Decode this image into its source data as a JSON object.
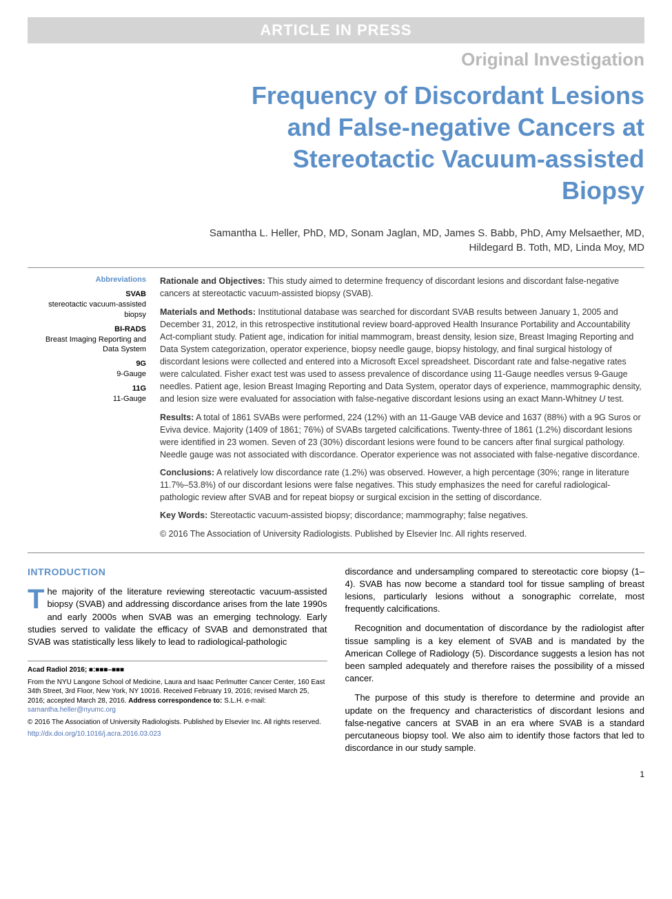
{
  "banner": "ARTICLE IN PRESS",
  "category": "Original Investigation",
  "title_lines": [
    "Frequency of Discordant Lesions",
    "and False-negative Cancers at",
    "Stereotactic Vacuum-assisted",
    "Biopsy"
  ],
  "authors_line1": "Samantha L. Heller, PhD, MD, Sonam Jaglan, MD, James S. Babb, PhD, Amy Melsaether, MD,",
  "authors_line2": "Hildegard B. Toth, MD, Linda Moy, MD",
  "abbrev": {
    "heading": "Abbreviations",
    "items": [
      {
        "term": "SVAB",
        "def": "stereotactic vacuum-assisted biopsy"
      },
      {
        "term": "BI-RADS",
        "def": "Breast Imaging Reporting and Data System"
      },
      {
        "term": "9G",
        "def": "9-Gauge"
      },
      {
        "term": "11G",
        "def": "11-Gauge"
      }
    ]
  },
  "abstract": {
    "rationale_label": "Rationale and Objectives:",
    "rationale": " This study aimed to determine frequency of discordant lesions and discordant false-negative cancers at stereotactic vacuum-assisted biopsy (SVAB).",
    "methods_label": "Materials and Methods:",
    "methods": " Institutional database was searched for discordant SVAB results between January 1, 2005 and December 31, 2012, in this retrospective institutional review board-approved Health Insurance Portability and Accountability Act-compliant study. Patient age, indication for initial mammogram, breast density, lesion size, Breast Imaging Reporting and Data System categorization, operator experience, biopsy needle gauge, biopsy histology, and final surgical histology of discordant lesions were collected and entered into a Microsoft Excel spreadsheet. Discordant rate and false-negative rates were calculated. Fisher exact test was used to assess prevalence of discordance using 11-Gauge needles versus 9-Gauge needles. Patient age, lesion Breast Imaging Reporting and Data System, operator days of experience, mammographic density, and lesion size were evaluated for association with false-negative discordant lesions using an exact Mann-Whitney ",
    "methods_tail": " test.",
    "u_stat": "U",
    "results_label": "Results:",
    "results": " A total of 1861 SVABs were performed, 224 (12%) with an 11-Gauge VAB device and 1637 (88%) with a 9G Suros or Eviva device. Majority (1409 of 1861; 76%) of SVABs targeted calcifications. Twenty-three of 1861 (1.2%) discordant lesions were identified in 23 women. Seven of 23 (30%) discordant lesions were found to be cancers after final surgical pathology. Needle gauge was not associated with discordance. Operator experience was not associated with false-negative discordance.",
    "conclusions_label": "Conclusions:",
    "conclusions": " A relatively low discordance rate (1.2%) was observed. However, a high percentage (30%; range in literature 11.7%–53.8%) of our discordant lesions were false negatives. This study emphasizes the need for careful radiological-pathologic review after SVAB and for repeat biopsy or surgical excision in the setting of discordance.",
    "keywords_label": "Key Words:",
    "keywords": " Stereotactic vacuum-assisted biopsy; discordance; mammography; false negatives.",
    "copyright": "© 2016 The Association of University Radiologists. Published by Elsevier Inc. All rights reserved."
  },
  "intro_heading": "INTRODUCTION",
  "intro_para1_first": "T",
  "intro_para1": "he majority of the literature reviewing stereotactic vacuum-assisted biopsy (SVAB) and addressing discordance arises from the late 1990s and early 2000s when SVAB was an emerging technology. Early studies served to validate the efficacy of SVAB and demonstrated that SVAB was statistically less likely to lead to radiological-pathologic",
  "right_para1": "discordance and undersampling compared to stereotactic core biopsy (1–4). SVAB has now become a standard tool for tissue sampling of breast lesions, particularly lesions without a sonographic correlate, most frequently calcifications.",
  "right_para2": "Recognition and documentation of discordance by the radiologist after tissue sampling is a key element of SVAB and is mandated by the American College of Radiology (5). Discordance suggests a lesion has not been sampled adequately and therefore raises the possibility of a missed cancer.",
  "right_para3": "The purpose of this study is therefore to determine and provide an update on the frequency and characteristics of discordant lesions and false-negative cancers at SVAB in an era where SVAB is a standard percutaneous biopsy tool. We also aim to identify those factors that led to discordance in our study sample.",
  "footnotes": {
    "citation": "Acad Radiol 2016; ■:■■■–■■■",
    "affiliation": "From the NYU Langone School of Medicine, Laura and Isaac Perlmutter Cancer Center, 160 East 34th Street, 3rd Floor, New York, NY 10016. Received February 19, 2016; revised March 25, 2016; accepted March 28, 2016. ",
    "corr_label": "Address correspondence to:",
    "corr": " S.L.H.  e-mail: ",
    "email": "samantha.heller@nyumc.org",
    "copyright": "© 2016 The Association of University Radiologists. Published by Elsevier Inc. All rights reserved.",
    "doi": "http://dx.doi.org/10.1016/j.acra.2016.03.023"
  },
  "pagenum": "1",
  "colors": {
    "banner_bg": "#d4d4d4",
    "banner_text": "#ffffff",
    "heading_blue": "#5b8fc7",
    "gray_text": "#b8b8b8",
    "link_blue": "#4a6fb0"
  }
}
